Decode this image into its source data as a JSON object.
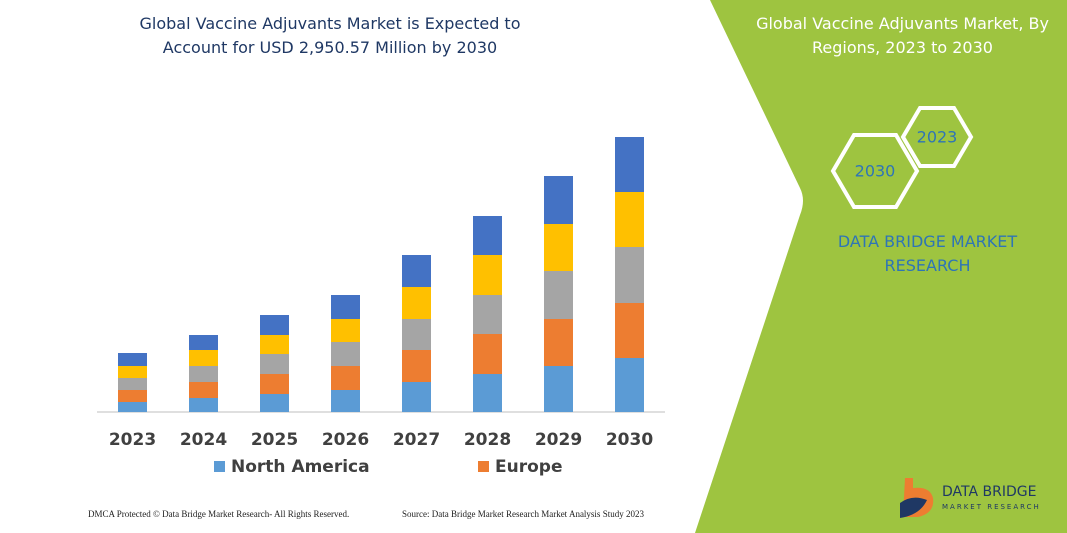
{
  "chart_data": {
    "type": "stacked_bar",
    "title": "Global Vaccine Adjuvants Market is Expected to Account for USD 2,950.57 Million by 2030",
    "categories": [
      "2023",
      "2024",
      "2025",
      "2026",
      "2027",
      "2028",
      "2029",
      "2030"
    ],
    "series": [
      {
        "name": "North America",
        "color": "#5b9bd5",
        "values": [
          10,
          14,
          18,
          22,
          30,
          38,
          46,
          54
        ]
      },
      {
        "name": "Europe",
        "color": "#ed7d31",
        "values": [
          12,
          16,
          20,
          24,
          32,
          40,
          47,
          55
        ]
      },
      {
        "color": "#a5a5a5",
        "values": [
          12,
          16,
          20,
          24,
          31,
          39,
          48,
          56
        ]
      },
      {
        "color": "#ffc000",
        "values": [
          12,
          16,
          19,
          23,
          32,
          40,
          47,
          55
        ]
      },
      {
        "color": "#4472c4",
        "values": [
          13,
          15,
          20,
          24,
          32,
          39,
          48,
          55
        ]
      }
    ],
    "ylim": [
      0,
      290
    ]
  },
  "side_panel": {
    "title": "Global Vaccine Adjuvants Market, By Regions, 2023 to 2030",
    "hexagons": [
      "2023",
      "2030"
    ],
    "brand": "DATA BRIDGE MARKET RESEARCH"
  },
  "footer": {
    "copyright": "DMCA Protected © Data Bridge Market Research-  All Rights Reserved.",
    "source": "Source: Data Bridge Market Research  Market Analysis Study 2023"
  },
  "logo": {
    "name": "DATA BRIDGE",
    "tagline": "MARKET RESEARCH"
  }
}
